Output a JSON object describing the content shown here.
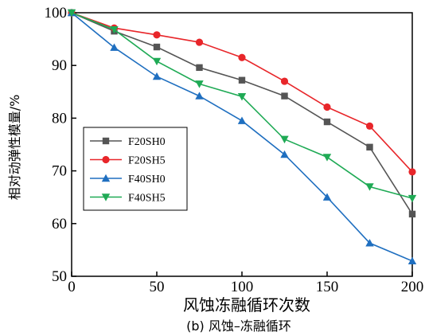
{
  "chart_data": {
    "type": "line",
    "xlabel": "风蚀冻融循环次数",
    "ylabel": "相对动弹性模量/%",
    "caption": "(b) 风蚀–冻融循环",
    "xlim": [
      0,
      200
    ],
    "ylim": [
      50,
      100
    ],
    "xticks": [
      0,
      50,
      100,
      150,
      200
    ],
    "yticks": [
      50,
      60,
      70,
      80,
      90,
      100
    ],
    "grid": false,
    "legend_position": "left",
    "x": [
      0,
      25,
      50,
      75,
      100,
      125,
      150,
      175,
      200
    ],
    "series": [
      {
        "name": "F20SH0",
        "color": "#555555",
        "marker": "square",
        "values": [
          100,
          96.5,
          93.5,
          89.6,
          87.2,
          84.2,
          79.3,
          74.5,
          61.8
        ]
      },
      {
        "name": "F20SH5",
        "color": "#e8262a",
        "marker": "circle",
        "values": [
          100,
          97.1,
          95.8,
          94.4,
          91.5,
          87.0,
          82.1,
          78.5,
          69.8
        ]
      },
      {
        "name": "F40SH0",
        "color": "#1f6fc0",
        "marker": "triangle-up",
        "values": [
          100,
          93.4,
          87.9,
          84.2,
          79.5,
          73.1,
          65.0,
          56.3,
          52.9
        ]
      },
      {
        "name": "F40SH5",
        "color": "#1faa55",
        "marker": "triangle-down",
        "values": [
          100,
          96.8,
          90.8,
          86.5,
          84.1,
          76.0,
          72.6,
          67.0,
          64.8
        ]
      }
    ]
  }
}
